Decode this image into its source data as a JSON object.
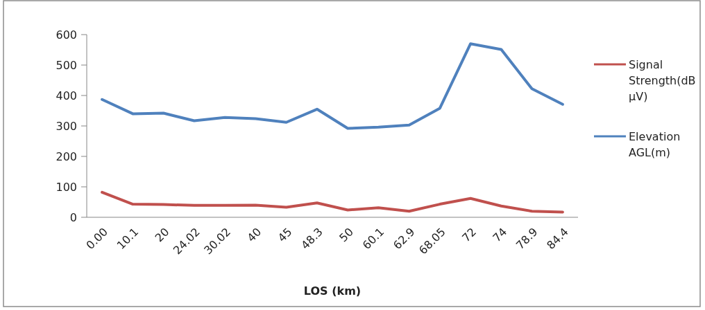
{
  "chart_data": {
    "type": "line",
    "xlabel": "LOS (km)",
    "categories": [
      "0.00",
      "10.1",
      "20",
      "24.02",
      "30.02",
      "40",
      "45",
      "48.3",
      "50",
      "60.1",
      "62.9",
      "68.05",
      "72",
      "74",
      "78.9",
      "84.4"
    ],
    "series": [
      {
        "name": "Signal Strength(dB µV)",
        "color": "#c0504d",
        "values": [
          82,
          43,
          42,
          39,
          39,
          40,
          33,
          47,
          24,
          31,
          20,
          43,
          62,
          37,
          20,
          17
        ]
      },
      {
        "name": "Elevation AGL(m)",
        "color": "#4f81bd",
        "values": [
          387,
          340,
          342,
          317,
          328,
          324,
          312,
          355,
          292,
          296,
          303,
          358,
          570,
          551,
          422,
          371
        ]
      }
    ],
    "ylim": [
      0,
      600
    ],
    "yticks": [
      0,
      100,
      200,
      300,
      400,
      500,
      600
    ],
    "legend": "right"
  }
}
